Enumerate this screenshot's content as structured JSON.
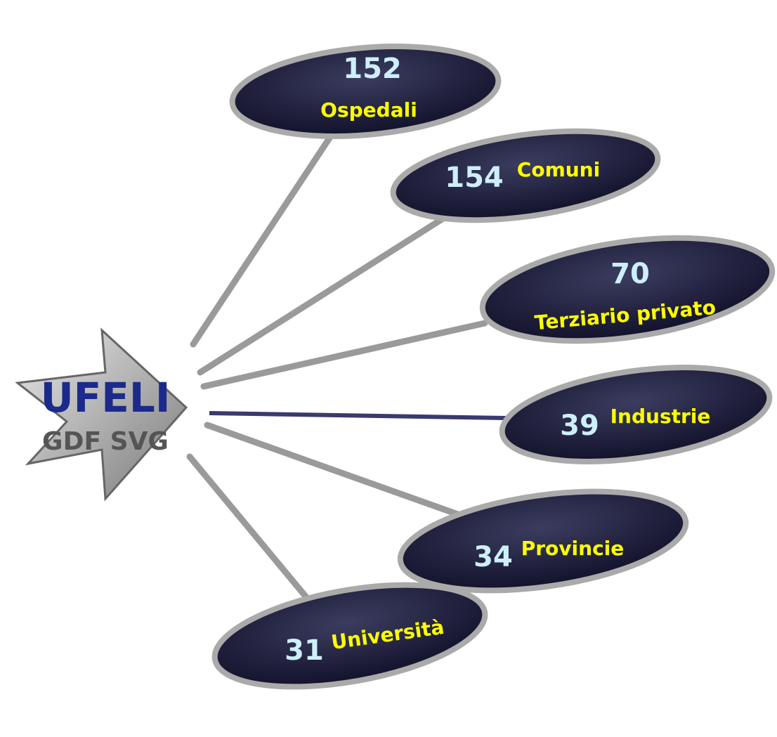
{
  "logo": {
    "top": "UFELI",
    "bottom": "GDF SVG"
  },
  "nodes": [
    {
      "number": 152,
      "label": "Ospedali"
    },
    {
      "number": 154,
      "label": "Comuni"
    },
    {
      "number": 70,
      "label": "Terziario privato"
    },
    {
      "number": 39,
      "label": "Industrie"
    },
    {
      "number": 34,
      "label": "Provincie"
    },
    {
      "number": 31,
      "label": "Università"
    }
  ]
}
